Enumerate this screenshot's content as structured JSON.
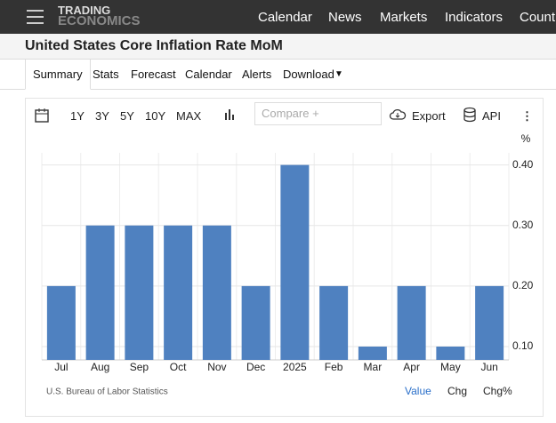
{
  "nav": {
    "logo_top": "TRADING",
    "logo_bottom": "ECONOMICS",
    "links": [
      "Calendar",
      "News",
      "Markets",
      "Indicators",
      "Countries"
    ]
  },
  "page_title": "United States Core Inflation Rate MoM",
  "tabs": [
    "Summary",
    "Stats",
    "Forecast",
    "Calendar",
    "Alerts",
    "Download"
  ],
  "toolbar": {
    "ranges": [
      "1Y",
      "3Y",
      "5Y",
      "10Y",
      "MAX"
    ],
    "compare": "Compare +",
    "export": "Export",
    "api": "API"
  },
  "chart_data": {
    "type": "bar",
    "unit": "%",
    "categories": [
      "Jul",
      "Aug",
      "Sep",
      "Oct",
      "Nov",
      "Dec",
      "2025",
      "Feb",
      "Mar",
      "Apr",
      "May",
      "Jun"
    ],
    "values": [
      0.2,
      0.3,
      0.3,
      0.3,
      0.3,
      0.2,
      0.4,
      0.2,
      0.1,
      0.2,
      0.1,
      0.2
    ],
    "color": "#4f81c0",
    "ylim": [
      0.078,
      0.42
    ],
    "yticks": [
      {
        "value": 0.1,
        "label": "0.10"
      },
      {
        "value": 0.2,
        "label": "0.20"
      },
      {
        "value": 0.3,
        "label": "0.30"
      },
      {
        "value": 0.4,
        "label": "0.40"
      }
    ],
    "grid": true
  },
  "source": "U.S. Bureau of Labor Statistics",
  "footer_links": [
    "Value",
    "Chg",
    "Chg%"
  ]
}
